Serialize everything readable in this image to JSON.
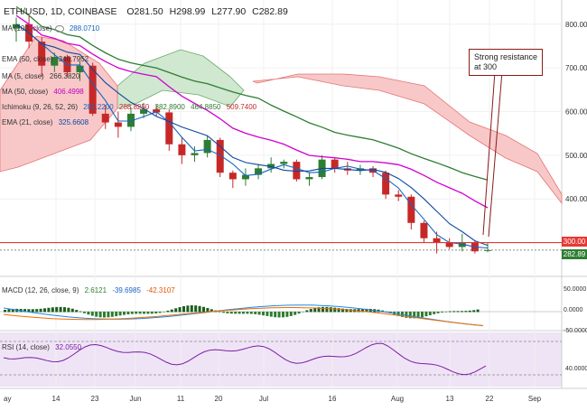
{
  "header": {
    "symbol": "ETH/USD, 1D, COINBASE",
    "ohlc": {
      "o": "281.50",
      "h": "298.99",
      "l": "277.90",
      "c": "282.89"
    },
    "o_label": "O",
    "h_label": "H",
    "l_label": "L",
    "c_label": "C"
  },
  "indicators": [
    {
      "name": "MA (100, close)",
      "value": "288.0710",
      "color": "#1565c0"
    },
    {
      "name": "EMA (50, close)",
      "value": "346.7952",
      "color": "#333333"
    },
    {
      "name": "MA (5, close)",
      "value": "266.3820",
      "color": "#333333"
    },
    {
      "name": "MA (50, close)",
      "value": "406.4998",
      "color": "#c000c0"
    },
    {
      "name": "Ichimoku (9, 26, 52, 26)",
      "values": [
        "281.2200",
        "288.8250",
        "382.8900",
        "464.8850",
        "509.7400"
      ],
      "colors": [
        "#1565c0",
        "#c62828",
        "#2e7d32",
        "#2e7d32",
        "#c62828"
      ]
    },
    {
      "name": "EMA (21, close)",
      "value": "325.6608",
      "color": "#0d47a1"
    }
  ],
  "annotation": {
    "line1": "Strong resistance",
    "line2": "at 300"
  },
  "price_axis": {
    "ticks": [
      "800.00",
      "700.00",
      "600.00",
      "500.00",
      "400.00"
    ],
    "resistance_label": "300.00",
    "last_label": "282.89"
  },
  "macd": {
    "name": "MACD (12, 26, close, 9)",
    "values": [
      "2.6121",
      "-39.6985",
      "-42.3107"
    ],
    "axis_ticks": [
      "50.0000",
      "0.0000",
      "-50.0000"
    ]
  },
  "rsi": {
    "name": "RSI (14, close)",
    "value": "32.0550",
    "axis_ticks": [
      "40.0000"
    ]
  },
  "x_axis": {
    "labels": [
      "ay",
      "14",
      "23",
      "Jun",
      "11",
      "20",
      "Jul",
      "16",
      "Aug",
      "13",
      "22",
      "Sep"
    ]
  },
  "colors": {
    "bull": "#2e7d32",
    "bear": "#c62828",
    "resistance": "#e53935",
    "kumo_bear": "#f8c8c8",
    "kumo_bull": "#cfe8cf",
    "ma50": "#d100d1",
    "ema50": "#2e7d32"
  },
  "chart_data": [
    {
      "type": "candlestick",
      "title": "ETH/USD, 1D, COINBASE",
      "ylim": [
        235,
        845
      ],
      "x": [
        "May 05",
        "May 08",
        "May 11",
        "May 14",
        "May 17",
        "May 20",
        "May 23",
        "May 26",
        "May 29",
        "Jun 01",
        "Jun 04",
        "Jun 07",
        "Jun 10",
        "Jun 13",
        "Jun 16",
        "Jun 19",
        "Jun 22",
        "Jun 25",
        "Jun 28",
        "Jul 01",
        "Jul 04",
        "Jul 07",
        "Jul 10",
        "Jul 13",
        "Jul 16",
        "Jul 19",
        "Jul 22",
        "Jul 25",
        "Jul 28",
        "Jul 31",
        "Aug 03",
        "Aug 06",
        "Aug 09",
        "Aug 12",
        "Aug 15",
        "Aug 18",
        "Aug 21",
        "Aug 22"
      ],
      "ohlc": [
        [
          790,
          815,
          760,
          800
        ],
        [
          800,
          820,
          745,
          760
        ],
        [
          760,
          770,
          680,
          705
        ],
        [
          705,
          735,
          690,
          725
        ],
        [
          725,
          730,
          680,
          690
        ],
        [
          690,
          715,
          670,
          705
        ],
        [
          705,
          712,
          590,
          595
        ],
        [
          595,
          615,
          560,
          575
        ],
        [
          575,
          600,
          540,
          565
        ],
        [
          565,
          610,
          555,
          595
        ],
        [
          595,
          620,
          585,
          605
        ],
        [
          605,
          615,
          590,
          598
        ],
        [
          598,
          605,
          510,
          525
        ],
        [
          525,
          540,
          480,
          500
        ],
        [
          500,
          520,
          485,
          505
        ],
        [
          505,
          545,
          495,
          535
        ],
        [
          535,
          540,
          450,
          460
        ],
        [
          460,
          465,
          425,
          445
        ],
        [
          445,
          470,
          430,
          455
        ],
        [
          455,
          480,
          445,
          470
        ],
        [
          470,
          495,
          460,
          480
        ],
        [
          480,
          490,
          470,
          485
        ],
        [
          485,
          490,
          440,
          445
        ],
        [
          445,
          460,
          430,
          450
        ],
        [
          450,
          500,
          445,
          490
        ],
        [
          490,
          495,
          460,
          470
        ],
        [
          470,
          485,
          455,
          465
        ],
        [
          465,
          478,
          455,
          470
        ],
        [
          470,
          475,
          450,
          460
        ],
        [
          460,
          465,
          400,
          410
        ],
        [
          410,
          420,
          395,
          405
        ],
        [
          405,
          410,
          330,
          345
        ],
        [
          345,
          350,
          300,
          310
        ],
        [
          310,
          325,
          275,
          300
        ],
        [
          300,
          310,
          285,
          290
        ],
        [
          290,
          320,
          280,
          300
        ],
        [
          300,
          305,
          275,
          280
        ],
        [
          281.5,
          298.99,
          277.9,
          282.89
        ]
      ],
      "resistance": 300
    },
    {
      "type": "bar",
      "title": "MACD (12, 26, close, 9)",
      "values": [
        2.6121,
        -39.6985,
        -42.3107
      ]
    },
    {
      "type": "line",
      "title": "RSI (14, close)",
      "values": [
        32.055
      ]
    }
  ]
}
